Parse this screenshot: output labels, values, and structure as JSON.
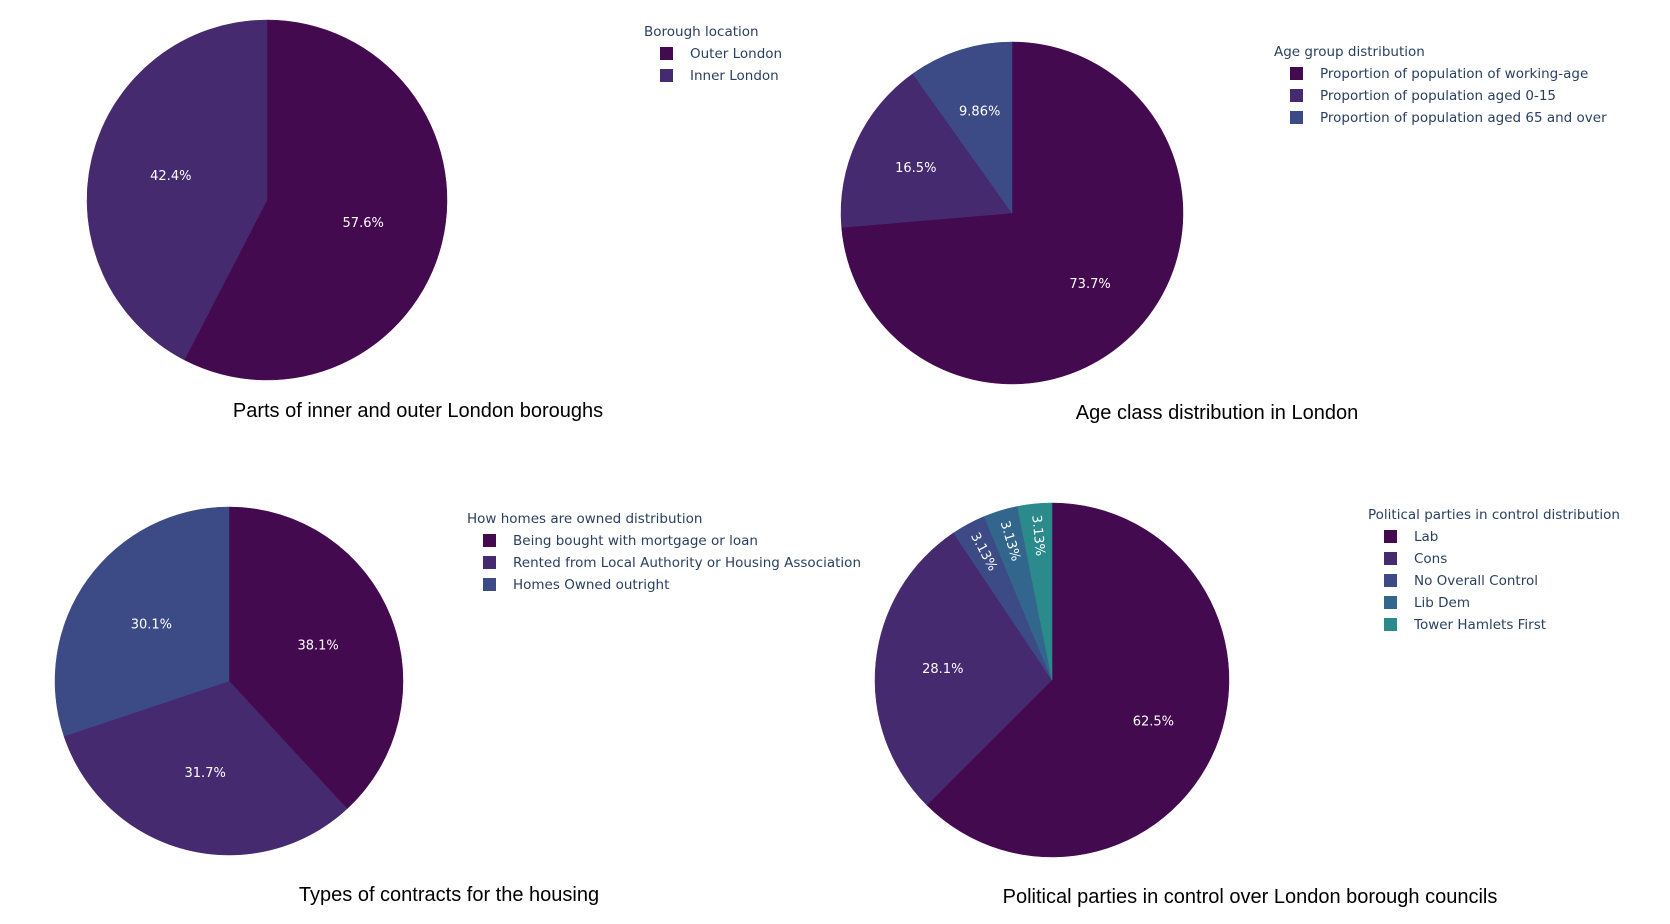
{
  "palette": [
    "#440a4f",
    "#462a70",
    "#3c4a86",
    "#33668d",
    "#2a8a8c"
  ],
  "chart_data": [
    {
      "type": "pie",
      "title": "Parts of inner and outer London boroughs",
      "legend_title": "Borough location",
      "legend_placement": "top-right",
      "labels": [
        "Outer London",
        "Inner London"
      ],
      "values": [
        57.6,
        42.4
      ],
      "value_labels": [
        "57.6%",
        "42.4%"
      ]
    },
    {
      "type": "pie",
      "title": "Age class distribution in London",
      "legend_title": "Age group distribution",
      "legend_placement": "top-right",
      "labels": [
        "Proportion of population of working-age",
        "Proportion of population aged 0-15",
        "Proportion of population aged 65 and over"
      ],
      "values": [
        73.7,
        16.5,
        9.86
      ],
      "value_labels": [
        "73.7%",
        "16.5%",
        "9.86%"
      ]
    },
    {
      "type": "pie",
      "title": "Types of contracts for the housing",
      "legend_title": "How homes are owned distribution",
      "legend_placement": "top-right",
      "labels": [
        "Being bought with mortgage or loan",
        "Rented from Local Authority or Housing Association",
        "Homes Owned outright"
      ],
      "values": [
        38.1,
        31.7,
        30.1
      ],
      "value_labels": [
        "38.1%",
        "31.7%",
        "30.1%"
      ]
    },
    {
      "type": "pie",
      "title": "Political parties in control over London borough councils",
      "legend_title": "Political parties in control distribution",
      "legend_placement": "top-right",
      "labels": [
        "Lab",
        "Cons",
        "No Overall Control",
        "Lib Dem",
        "Tower Hamlets First"
      ],
      "values": [
        62.5,
        28.1,
        3.13,
        3.13,
        3.13
      ],
      "value_labels": [
        "62.5%",
        "28.1%",
        "3.13%",
        "3.13%",
        "3.13%"
      ]
    }
  ]
}
